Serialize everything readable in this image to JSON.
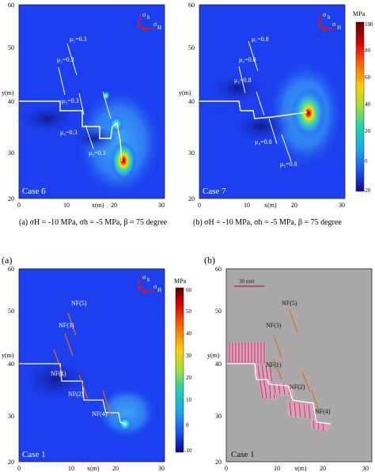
{
  "top": {
    "axis_label_y": "y(m)",
    "axis_label_x": "x(m)",
    "y_ticks": [
      "60",
      "50",
      "40",
      "30",
      "20"
    ],
    "x_ticks": [
      "0",
      "10",
      "20",
      "30"
    ],
    "x_ticks_case7": [
      "0",
      "10",
      "20",
      "30"
    ],
    "stress_sigma_h": "σ",
    "stress_sigma_h_sub": "h",
    "stress_sigma_H_sub": "H",
    "case6": {
      "label": "Case 6",
      "mu_labels": [
        "μ₁=0.3",
        "μ₂=0.3",
        "μ₃=0.3",
        "μ₄=0.3",
        "μ₅=0.3"
      ]
    },
    "case7": {
      "label": "Case 7",
      "mu_labels": [
        "μ₁=0.8",
        "μ₂=0.8",
        "μ₃=0.8",
        "μ₄=0.8",
        "μ₅=0.8"
      ]
    },
    "colorbar": {
      "unit": "MPa",
      "ticks": [
        "100",
        "80",
        "60",
        "40",
        "20",
        "0",
        "-20"
      ]
    },
    "caption_a": "(a) σH = -10 MPa, σh = -5 MPa, β = 75 degree",
    "caption_b": "(b) σH = -10 MPa, σh = -5 MPa, β = 75 degree"
  },
  "bottom": {
    "panel_a_label": "(a)",
    "panel_b_label": "(b)",
    "axis_label_y": "y(m)",
    "axis_label_x": "x(m)",
    "y_ticks": [
      "60",
      "50",
      "40",
      "30",
      "20"
    ],
    "x_ticks": [
      "0",
      "10",
      "20",
      "30"
    ],
    "nf_labels": [
      "NF(5)",
      "NF(3)",
      "NF(1)",
      "NF(2)",
      "NF(4)"
    ],
    "case_label": "Case 1",
    "colorbar": {
      "unit": "MPa",
      "ticks": [
        "60",
        "50",
        "40",
        "30",
        "20",
        "10",
        "0",
        "-10"
      ]
    },
    "scale_bar": "30 mm"
  },
  "colors": {
    "field_blue": "#1c3ff0",
    "fracture_white": "#ffffff",
    "natural_fracture": "#e86a12",
    "gray_panel": "#a9a9a9",
    "frac_pink": "#c2185b"
  }
}
